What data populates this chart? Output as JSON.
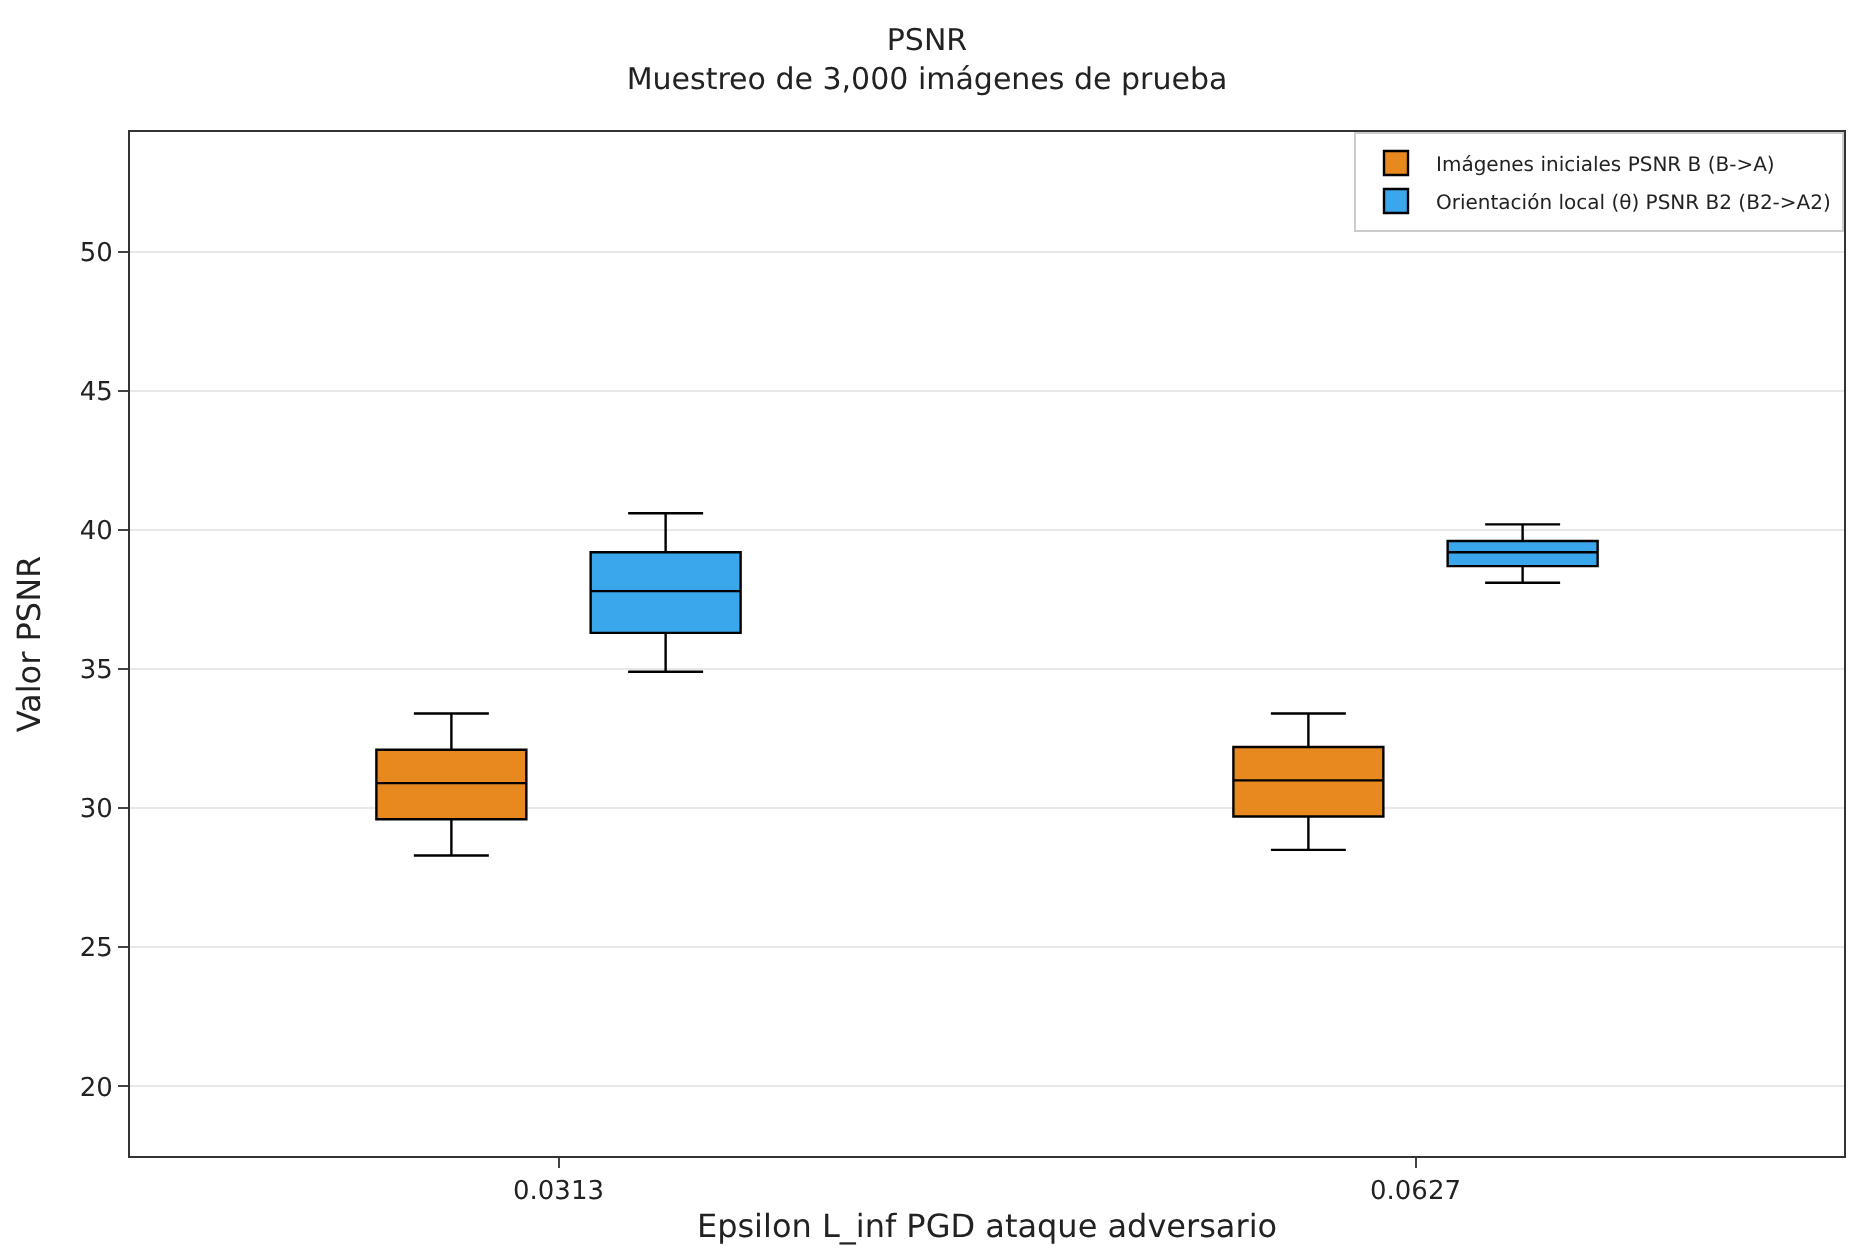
{
  "chart_data": {
    "type": "box",
    "title": "PSNR",
    "subtitle": "Muestreo de 3,000 imágenes de prueba",
    "xlabel": "Epsilon L_inf PGD ataque adversario",
    "ylabel": "Valor PSNR",
    "categories": [
      "0.0313",
      "0.0627"
    ],
    "series": [
      {
        "name": "Imágenes iniciales PSNR B (B->A)",
        "color": "#e8891f",
        "boxes": [
          {
            "low": 28.3,
            "q1": 29.6,
            "median": 30.9,
            "q3": 32.1,
            "high": 33.4
          },
          {
            "low": 28.5,
            "q1": 29.7,
            "median": 31.0,
            "q3": 32.2,
            "high": 33.4
          }
        ]
      },
      {
        "name": "Orientación local (θ) PSNR B2 (B2->A2)",
        "color": "#3aa6ec",
        "boxes": [
          {
            "low": 34.9,
            "q1": 36.3,
            "median": 37.8,
            "q3": 39.2,
            "high": 40.6
          },
          {
            "low": 38.1,
            "q1": 38.7,
            "median": 39.2,
            "q3": 39.6,
            "high": 40.2
          }
        ]
      }
    ],
    "ylim": [
      17.5,
      54.3
    ],
    "yticks": [
      20,
      25,
      30,
      35,
      40,
      45,
      50
    ],
    "grid": "y",
    "legend": "top right"
  }
}
